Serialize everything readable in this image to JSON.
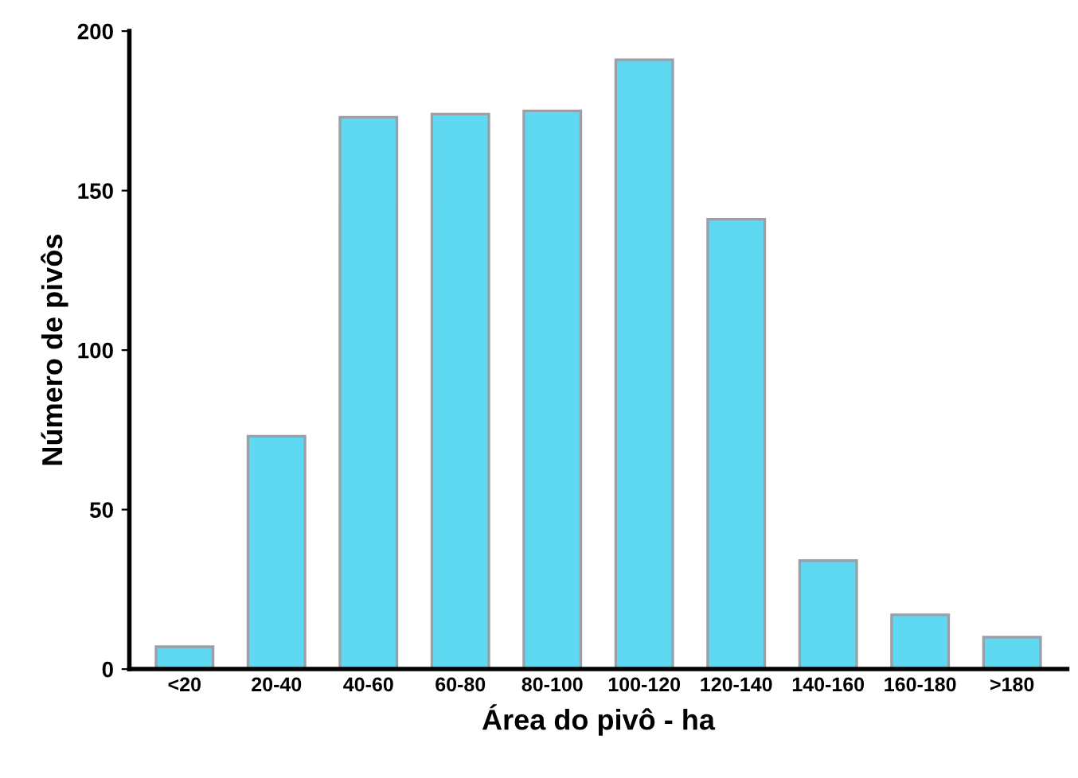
{
  "chart_data": {
    "type": "bar",
    "xlabel": "Área do pivô - ha",
    "ylabel": "Número de pivôs",
    "categories": [
      "<20",
      "20-40",
      "40-60",
      "60-80",
      "80-100",
      "100-120",
      "120-140",
      "140-160",
      "160-180",
      ">180"
    ],
    "values": [
      7,
      73,
      173,
      174,
      175,
      191,
      141,
      34,
      17,
      10
    ],
    "color": "#5fd8f2",
    "ylim": [
      0,
      200
    ],
    "yticks": [
      0,
      50,
      100,
      150,
      200
    ],
    "grid": false,
    "legend": false
  }
}
